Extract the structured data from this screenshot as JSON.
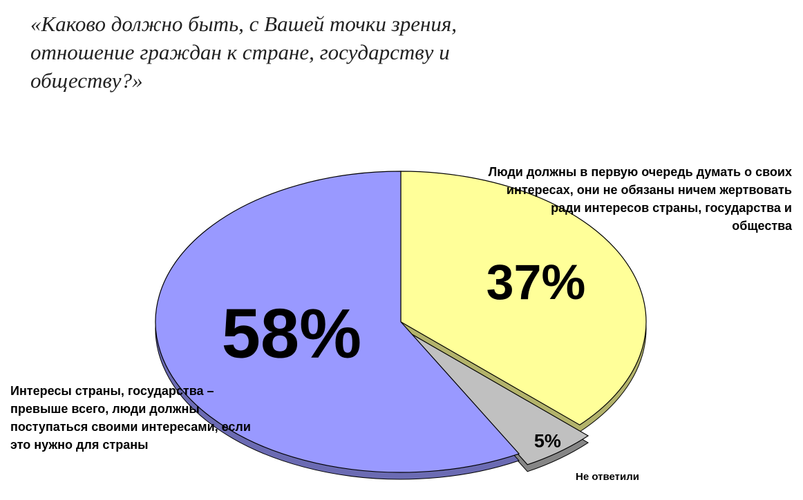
{
  "chart_data": {
    "type": "pie",
    "title": "«Каково должно быть, с Вашей точки зрения, отношение граждан к стране, государству и обществу?»",
    "categories": [
      "Люди должны в первую очередь думать о своих интересах, они не обязаны ничем жертвовать ради интересов страны, государства и общества",
      "Не ответили",
      "Интересы страны, государства – превыше всего, люди должны поступаться своими интересами, если это нужно для страны"
    ],
    "values": [
      37,
      5,
      58
    ],
    "value_labels": [
      "37%",
      "5%",
      "58%"
    ],
    "colors": [
      "#ffff99",
      "#c0c0c0",
      "#9999ff"
    ]
  }
}
